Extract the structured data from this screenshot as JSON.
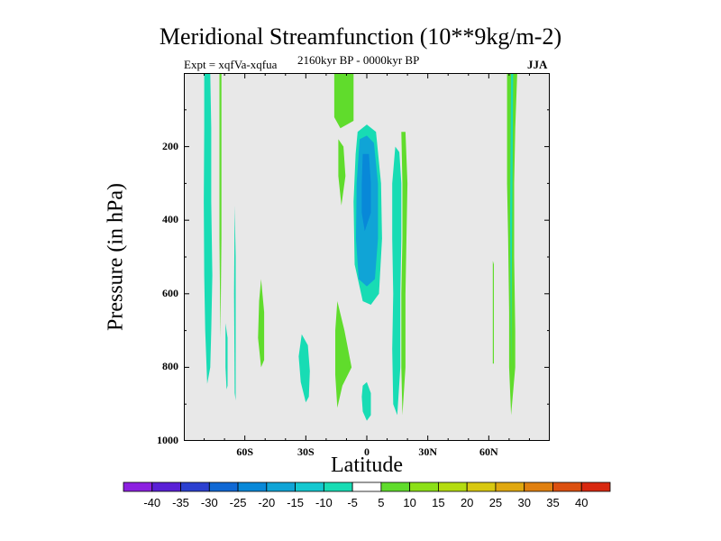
{
  "chart_data": {
    "type": "contour",
    "title": "Meridional Streamfunction (10**9kg/m-2)",
    "subtitle_left": "Expt = xqfVa-xqfua",
    "subtitle_center": "2160kyr BP - 0000kyr BP",
    "subtitle_right": "JJA",
    "xlabel": "Latitude",
    "ylabel": "Pressure (in hPa)",
    "xlim": [
      -90,
      90
    ],
    "ylim": [
      1000,
      0
    ],
    "x_ticks": [
      {
        "value": -60,
        "label": "60S"
      },
      {
        "value": -30,
        "label": "30S"
      },
      {
        "value": 0,
        "label": "0"
      },
      {
        "value": 30,
        "label": "30N"
      },
      {
        "value": 60,
        "label": "60N"
      }
    ],
    "y_ticks": [
      {
        "value": 200,
        "label": "200"
      },
      {
        "value": 400,
        "label": "400"
      },
      {
        "value": 600,
        "label": "600"
      },
      {
        "value": 800,
        "label": "800"
      },
      {
        "value": 1000,
        "label": "1000"
      }
    ],
    "background_color": "#e8e8e8",
    "colorbar": {
      "levels": [
        "-40",
        "-35",
        "-30",
        "-25",
        "-20",
        "-15",
        "-10",
        "-5",
        "5",
        "10",
        "15",
        "20",
        "25",
        "30",
        "35",
        "40"
      ],
      "colors": [
        "#8c20e0",
        "#5a20d6",
        "#2c40d0",
        "#1068d4",
        "#0888d8",
        "#10a4d6",
        "#14c8d0",
        "#18dcb4",
        "#ffffff",
        "#60dc2c",
        "#8ce018",
        "#b4dc10",
        "#d8c810",
        "#e0a810",
        "#e08010",
        "#dc5010",
        "#d82810"
      ]
    },
    "regions": [
      {
        "value": -7,
        "color": "#18dcb4",
        "points": [
          [
            -80,
            0
          ],
          [
            -77,
            0
          ],
          [
            -76.5,
            150
          ],
          [
            -76.5,
            350
          ],
          [
            -76,
            550
          ],
          [
            -76.5,
            700
          ],
          [
            -77,
            800
          ],
          [
            -78.5,
            845
          ],
          [
            -79.5,
            700
          ],
          [
            -80,
            550
          ],
          [
            -80.2,
            350
          ],
          [
            -80,
            150
          ]
        ]
      },
      {
        "value": 7,
        "color": "#60dc2c",
        "points": [
          [
            -72.5,
            0
          ],
          [
            -71.5,
            0
          ],
          [
            -71.5,
            450
          ],
          [
            -72,
            720
          ],
          [
            -72.5,
            450
          ]
        ]
      },
      {
        "value": -7,
        "color": "#18dcb4",
        "points": [
          [
            -69.5,
            680
          ],
          [
            -68.5,
            720
          ],
          [
            -68.5,
            850
          ],
          [
            -69,
            860
          ],
          [
            -69.5,
            800
          ]
        ]
      },
      {
        "value": -7,
        "color": "#18dcb4",
        "points": [
          [
            -65,
            360
          ],
          [
            -64.5,
            500
          ],
          [
            -64.5,
            890
          ],
          [
            -65,
            870
          ],
          [
            -65.3,
            600
          ]
        ]
      },
      {
        "value": 7,
        "color": "#60dc2c",
        "points": [
          [
            -52,
            560
          ],
          [
            -50.5,
            650
          ],
          [
            -50.5,
            780
          ],
          [
            -52,
            800
          ],
          [
            -53.5,
            720
          ],
          [
            -53,
            620
          ]
        ]
      },
      {
        "value": -7,
        "color": "#18dcb4",
        "points": [
          [
            -32,
            710
          ],
          [
            -29,
            740
          ],
          [
            -28,
            810
          ],
          [
            -28.5,
            880
          ],
          [
            -30,
            895
          ],
          [
            -32.5,
            840
          ],
          [
            -33.5,
            770
          ]
        ]
      },
      {
        "value": 7,
        "color": "#60dc2c",
        "points": [
          [
            -16,
            0
          ],
          [
            -6.5,
            0
          ],
          [
            -6.5,
            130
          ],
          [
            -13,
            150
          ],
          [
            -16,
            120
          ]
        ]
      },
      {
        "value": 7,
        "color": "#60dc2c",
        "points": [
          [
            -14,
            180
          ],
          [
            -11.5,
            200
          ],
          [
            -10.5,
            280
          ],
          [
            -12.5,
            360
          ],
          [
            -14,
            280
          ]
        ]
      },
      {
        "value": 7,
        "color": "#60dc2c",
        "points": [
          [
            -14.5,
            620
          ],
          [
            -11,
            700
          ],
          [
            -7.5,
            800
          ],
          [
            -12,
            850
          ],
          [
            -14.5,
            910
          ],
          [
            -15.5,
            820
          ],
          [
            -15.5,
            700
          ]
        ]
      },
      {
        "value": -7,
        "color": "#18dcb4",
        "points": [
          [
            -4.5,
            160
          ],
          [
            0,
            140
          ],
          [
            4.5,
            160
          ],
          [
            7,
            300
          ],
          [
            7.5,
            450
          ],
          [
            6,
            600
          ],
          [
            2,
            630
          ],
          [
            -2,
            620
          ],
          [
            -6,
            520
          ],
          [
            -6.5,
            350
          ],
          [
            -5.5,
            220
          ]
        ]
      },
      {
        "value": -12,
        "color": "#10a4d6",
        "points": [
          [
            -3.5,
            180
          ],
          [
            0,
            170
          ],
          [
            3.5,
            190
          ],
          [
            5.5,
            300
          ],
          [
            5.5,
            450
          ],
          [
            4,
            560
          ],
          [
            0,
            580
          ],
          [
            -4,
            560
          ],
          [
            -5.3,
            450
          ],
          [
            -5,
            300
          ]
        ]
      },
      {
        "value": -17,
        "color": "#0888d8",
        "points": [
          [
            -2,
            220
          ],
          [
            1,
            220
          ],
          [
            2,
            300
          ],
          [
            2,
            380
          ],
          [
            -1,
            430
          ],
          [
            -2.5,
            380
          ],
          [
            -2.5,
            300
          ]
        ]
      },
      {
        "value": -7,
        "color": "#18dcb4",
        "points": [
          [
            -2,
            850
          ],
          [
            0,
            840
          ],
          [
            2,
            870
          ],
          [
            2,
            930
          ],
          [
            0,
            945
          ],
          [
            -2,
            920
          ],
          [
            -2.5,
            880
          ]
        ]
      },
      {
        "value": -7,
        "color": "#18dcb4",
        "points": [
          [
            14,
            200
          ],
          [
            16,
            215
          ],
          [
            17,
            300
          ],
          [
            17,
            450
          ],
          [
            16.5,
            600
          ],
          [
            16.5,
            800
          ],
          [
            15,
            930
          ],
          [
            13,
            900
          ],
          [
            12.5,
            750
          ],
          [
            13,
            600
          ],
          [
            12.5,
            450
          ],
          [
            12.5,
            300
          ]
        ]
      },
      {
        "value": 7,
        "color": "#60dc2c",
        "points": [
          [
            17,
            160
          ],
          [
            19,
            160
          ],
          [
            20,
            300
          ],
          [
            19.5,
            450
          ],
          [
            19,
            600
          ],
          [
            19,
            800
          ],
          [
            17.5,
            930
          ],
          [
            17,
            800
          ],
          [
            17,
            600
          ],
          [
            17.5,
            450
          ],
          [
            17.5,
            300
          ]
        ]
      },
      {
        "value": 7,
        "color": "#60dc2c",
        "points": [
          [
            62,
            510
          ],
          [
            62.5,
            520
          ],
          [
            62.5,
            790
          ],
          [
            62,
            790
          ]
        ]
      },
      {
        "value": 7,
        "color": "#60dc2c",
        "points": [
          [
            69,
            0
          ],
          [
            74,
            0
          ],
          [
            73,
            150
          ],
          [
            72.5,
            300
          ],
          [
            72.5,
            500
          ],
          [
            73,
            700
          ],
          [
            73,
            800
          ],
          [
            71,
            930
          ],
          [
            70,
            800
          ],
          [
            70,
            650
          ],
          [
            69.5,
            450
          ],
          [
            69,
            300
          ],
          [
            69,
            150
          ]
        ]
      },
      {
        "value": -7,
        "color": "#18dcb4",
        "points": [
          [
            71,
            0
          ],
          [
            72,
            0
          ],
          [
            71.5,
            400
          ],
          [
            71,
            800
          ],
          [
            70.5,
            400
          ]
        ]
      }
    ]
  }
}
